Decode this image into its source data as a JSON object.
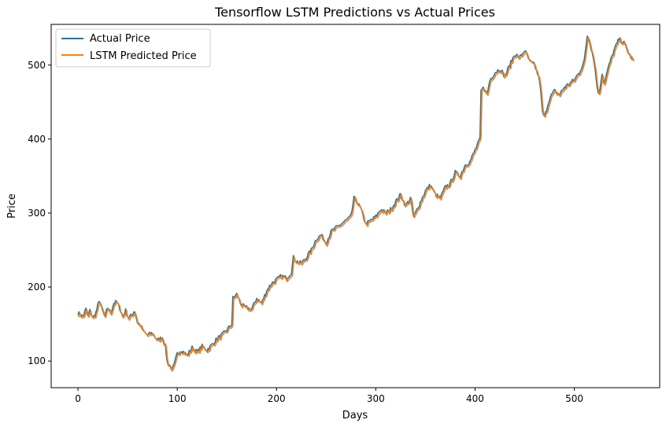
{
  "chart_data": {
    "type": "line",
    "title": "Tensorflow LSTM Predictions vs Actual Prices",
    "xlabel": "Days",
    "ylabel": "Price",
    "xlim": [
      -27,
      586
    ],
    "ylim": [
      64,
      555
    ],
    "x_ticks": [
      0,
      100,
      200,
      300,
      400,
      500
    ],
    "y_ticks": [
      100,
      200,
      300,
      400,
      500
    ],
    "grid": false,
    "legend_position": "upper-left",
    "anchors_x": [
      0,
      5,
      8,
      10,
      12,
      15,
      18,
      20,
      22,
      24,
      27,
      30,
      33,
      36,
      39,
      42,
      45,
      48,
      51,
      54,
      57,
      60,
      63,
      66,
      70,
      75,
      80,
      85,
      88,
      90,
      92,
      93,
      95,
      97,
      100,
      104,
      110,
      115,
      120,
      125,
      130,
      135,
      140,
      145,
      150,
      155,
      156,
      160,
      165,
      170,
      175,
      180,
      185,
      190,
      195,
      200,
      205,
      210,
      215,
      217,
      220,
      225,
      230,
      235,
      240,
      245,
      250,
      255,
      260,
      265,
      270,
      275,
      278,
      280,
      285,
      290,
      295,
      300,
      305,
      310,
      315,
      320,
      325,
      330,
      335,
      338,
      340,
      345,
      350,
      355,
      360,
      365,
      370,
      375,
      380,
      385,
      390,
      395,
      400,
      405,
      406,
      409,
      412,
      415,
      420,
      425,
      430,
      435,
      440,
      445,
      450,
      455,
      460,
      465,
      468,
      470,
      475,
      480,
      485,
      490,
      495,
      500,
      505,
      510,
      513,
      515,
      520,
      523,
      525,
      528,
      530,
      535,
      540,
      545,
      550,
      555,
      560
    ],
    "anchors_y": [
      165,
      160,
      170,
      160,
      168,
      158,
      165,
      175,
      182,
      170,
      160,
      172,
      165,
      178,
      180,
      172,
      160,
      168,
      158,
      162,
      168,
      152,
      148,
      140,
      135,
      138,
      128,
      132,
      120,
      98,
      95,
      93,
      88,
      95,
      110,
      115,
      108,
      118,
      112,
      120,
      115,
      122,
      130,
      135,
      142,
      150,
      185,
      190,
      175,
      172,
      170,
      185,
      178,
      195,
      205,
      210,
      215,
      212,
      220,
      240,
      235,
      232,
      240,
      250,
      265,
      270,
      260,
      275,
      280,
      285,
      290,
      295,
      320,
      318,
      305,
      285,
      290,
      295,
      305,
      300,
      305,
      315,
      325,
      310,
      320,
      295,
      300,
      315,
      330,
      338,
      325,
      320,
      335,
      340,
      355,
      350,
      365,
      370,
      385,
      400,
      465,
      470,
      460,
      480,
      490,
      495,
      485,
      500,
      515,
      510,
      520,
      505,
      500,
      480,
      435,
      430,
      455,
      465,
      460,
      470,
      475,
      480,
      490,
      505,
      540,
      535,
      505,
      470,
      460,
      490,
      475,
      500,
      520,
      535,
      530,
      515,
      505
    ],
    "series": [
      {
        "name": "Actual Price",
        "color": "#1f77b4",
        "n_points": 561,
        "noise_seed": 7,
        "noise_amp": 3.0
      },
      {
        "name": "LSTM Predicted Price",
        "color": "#ff7f0e",
        "n_points": 561,
        "lag_days": 1,
        "bias": -2
      }
    ]
  }
}
